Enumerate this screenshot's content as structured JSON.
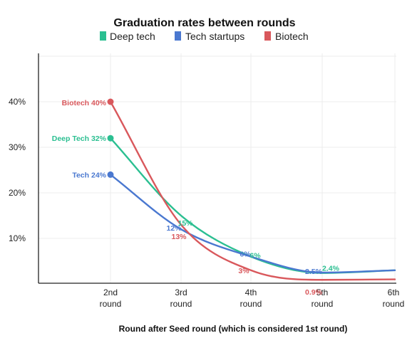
{
  "chart_data": {
    "type": "line",
    "title": "Graduation rates between rounds",
    "xlabel": "Round after Seed round (which is considered 1st round)",
    "ylabel": "",
    "categories": [
      {
        "line1": "2nd",
        "line2": "round"
      },
      {
        "line1": "3rd",
        "line2": "round"
      },
      {
        "line1": "4th",
        "line2": "round"
      },
      {
        "line1": "5th",
        "line2": "round"
      },
      {
        "line1": "6th",
        "line2": "round"
      }
    ],
    "y_ticks": [
      "10%",
      "20%",
      "30%",
      "40%"
    ],
    "y_tick_values": [
      10,
      20,
      30,
      40
    ],
    "ylim": [
      0,
      50
    ],
    "grid": true,
    "legend_position": "top",
    "series": [
      {
        "name": "Deep tech",
        "color": "#2bbf91",
        "values": [
          32,
          15,
          6,
          2.4,
          3
        ],
        "labels": [
          "Deep Tech 32%",
          "15%",
          "6%",
          "2.4%",
          ""
        ]
      },
      {
        "name": "Tech startups",
        "color": "#4a78d0",
        "values": [
          24,
          12,
          6,
          2.5,
          3
        ],
        "labels": [
          "Tech 24%",
          "12%",
          "6%",
          "2.5%",
          ""
        ]
      },
      {
        "name": "Biotech",
        "color": "#d9585c",
        "values": [
          40,
          13,
          3,
          0.9,
          1
        ],
        "labels": [
          "Biotech 40%",
          "13%",
          "3%",
          "0.9%",
          ""
        ]
      }
    ]
  }
}
